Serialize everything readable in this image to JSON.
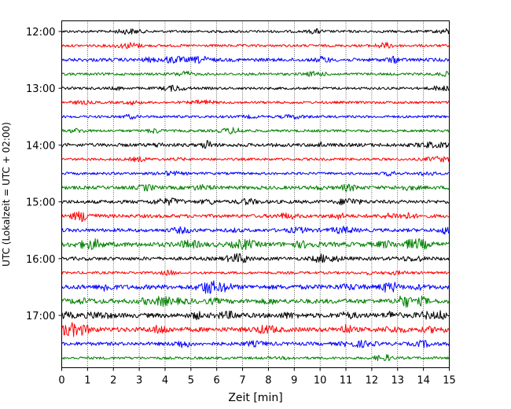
{
  "chart_data": {
    "type": "line",
    "title": "",
    "xlabel": "Zeit  [min]",
    "ylabel": "UTC (Lokalzeit = UTC + 02:00)",
    "xlim": [
      0,
      15
    ],
    "x_ticks": [
      0,
      1,
      2,
      3,
      4,
      5,
      6,
      7,
      8,
      9,
      10,
      11,
      12,
      13,
      14,
      15
    ],
    "y_tick_labels": [
      "12:00",
      "13:00",
      "14:00",
      "15:00",
      "16:00",
      "17:00"
    ],
    "grid": "vertical dotted lines at each minute",
    "trace_colors": [
      "#000000",
      "#ff0000",
      "#0000ff",
      "#008000"
    ],
    "series": [
      {
        "start": "12:00",
        "color": "#000000",
        "activity": "low"
      },
      {
        "start": "12:15",
        "color": "#ff0000",
        "activity": "low"
      },
      {
        "start": "12:30",
        "color": "#0000ff",
        "activity": "medium"
      },
      {
        "start": "12:45",
        "color": "#008000",
        "activity": "low"
      },
      {
        "start": "13:00",
        "color": "#000000",
        "activity": "low"
      },
      {
        "start": "13:15",
        "color": "#ff0000",
        "activity": "low"
      },
      {
        "start": "13:30",
        "color": "#0000ff",
        "activity": "low"
      },
      {
        "start": "13:45",
        "color": "#008000",
        "activity": "low"
      },
      {
        "start": "14:00",
        "color": "#000000",
        "activity": "medium"
      },
      {
        "start": "14:15",
        "color": "#ff0000",
        "activity": "low"
      },
      {
        "start": "14:30",
        "color": "#0000ff",
        "activity": "low"
      },
      {
        "start": "14:45",
        "color": "#008000",
        "activity": "medium"
      },
      {
        "start": "15:00",
        "color": "#000000",
        "activity": "medium"
      },
      {
        "start": "15:15",
        "color": "#ff0000",
        "activity": "medium"
      },
      {
        "start": "15:30",
        "color": "#0000ff",
        "activity": "medium"
      },
      {
        "start": "15:45",
        "color": "#008000",
        "activity": "high"
      },
      {
        "start": "16:00",
        "color": "#000000",
        "activity": "medium"
      },
      {
        "start": "16:15",
        "color": "#ff0000",
        "activity": "low"
      },
      {
        "start": "16:30",
        "color": "#0000ff",
        "activity": "high"
      },
      {
        "start": "16:45",
        "color": "#008000",
        "activity": "high"
      },
      {
        "start": "17:00",
        "color": "#000000",
        "activity": "high"
      },
      {
        "start": "17:15",
        "color": "#ff0000",
        "activity": "high"
      },
      {
        "start": "17:30",
        "color": "#0000ff",
        "activity": "medium"
      },
      {
        "start": "17:45",
        "color": "#008000",
        "activity": "low"
      }
    ]
  }
}
